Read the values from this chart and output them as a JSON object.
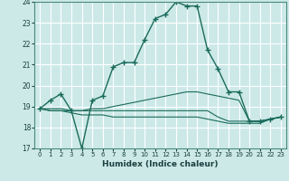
{
  "xlabel": "Humidex (Indice chaleur)",
  "background_color": "#cce9e8",
  "grid_color": "#ffffff",
  "line_color": "#1a6b5a",
  "xlim": [
    -0.5,
    23.5
  ],
  "ylim": [
    17,
    24
  ],
  "yticks": [
    17,
    18,
    19,
    20,
    21,
    22,
    23,
    24
  ],
  "xticks": [
    0,
    1,
    2,
    3,
    4,
    5,
    6,
    7,
    8,
    9,
    10,
    11,
    12,
    13,
    14,
    15,
    16,
    17,
    18,
    19,
    20,
    21,
    22,
    23
  ],
  "series": [
    {
      "x": [
        0,
        1,
        2,
        3,
        4,
        5,
        6,
        7,
        8,
        9,
        10,
        11,
        12,
        13,
        14,
        15,
        16,
        17,
        18,
        19,
        20,
        21,
        22,
        23
      ],
      "y": [
        18.9,
        19.3,
        19.6,
        18.8,
        17.0,
        19.3,
        19.5,
        20.9,
        21.1,
        21.1,
        22.2,
        23.2,
        23.4,
        24.0,
        23.8,
        23.8,
        21.7,
        20.8,
        19.7,
        19.7,
        18.3,
        18.3,
        18.4,
        18.5
      ],
      "marker": true
    },
    {
      "x": [
        0,
        1,
        2,
        3,
        4,
        5,
        6,
        7,
        8,
        9,
        10,
        11,
        12,
        13,
        14,
        15,
        16,
        17,
        18,
        19,
        20,
        21,
        22,
        23
      ],
      "y": [
        18.9,
        18.9,
        18.9,
        18.8,
        18.8,
        18.9,
        18.9,
        19.0,
        19.1,
        19.2,
        19.3,
        19.4,
        19.5,
        19.6,
        19.7,
        19.7,
        19.6,
        19.5,
        19.4,
        19.3,
        18.3,
        18.3,
        18.4,
        18.5
      ],
      "marker": false
    },
    {
      "x": [
        0,
        1,
        2,
        3,
        4,
        5,
        6,
        7,
        8,
        9,
        10,
        11,
        12,
        13,
        14,
        15,
        16,
        17,
        18,
        19,
        20,
        21,
        22,
        23
      ],
      "y": [
        18.9,
        18.8,
        18.8,
        18.8,
        18.8,
        18.8,
        18.8,
        18.8,
        18.8,
        18.8,
        18.8,
        18.8,
        18.8,
        18.8,
        18.8,
        18.8,
        18.8,
        18.5,
        18.3,
        18.3,
        18.3,
        18.3,
        18.4,
        18.5
      ],
      "marker": false
    },
    {
      "x": [
        0,
        1,
        2,
        3,
        4,
        5,
        6,
        7,
        8,
        9,
        10,
        11,
        12,
        13,
        14,
        15,
        16,
        17,
        18,
        19,
        20,
        21,
        22,
        23
      ],
      "y": [
        18.9,
        18.8,
        18.8,
        18.7,
        18.6,
        18.6,
        18.6,
        18.5,
        18.5,
        18.5,
        18.5,
        18.5,
        18.5,
        18.5,
        18.5,
        18.5,
        18.4,
        18.3,
        18.2,
        18.2,
        18.2,
        18.2,
        18.4,
        18.5
      ],
      "marker": false
    }
  ]
}
